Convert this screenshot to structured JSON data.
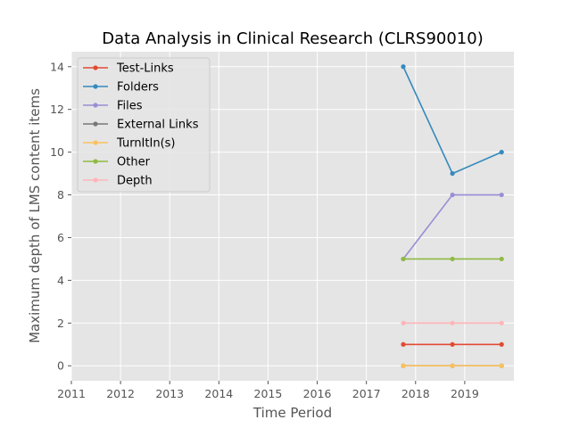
{
  "chart_data": {
    "type": "line",
    "title": "Data Analysis in Clinical Research (CLRS90010)",
    "xlabel": "Time Period",
    "ylabel": "Maximum depth of LMS content items",
    "xlim": [
      2011,
      2020
    ],
    "ylim": [
      -0.7,
      14.7
    ],
    "x_ticks": [
      "2011",
      "2012",
      "2013",
      "2014",
      "2015",
      "2016",
      "2017",
      "2018",
      "2019"
    ],
    "y_ticks": [
      "0",
      "2",
      "4",
      "6",
      "8",
      "10",
      "12",
      "14"
    ],
    "grid": true,
    "legend_position": "top-left",
    "x": [
      "2017-10",
      "2018-10",
      "2019-10"
    ],
    "series": [
      {
        "name": "Test-Links",
        "color": "#E24A33",
        "values": [
          1,
          1,
          1
        ]
      },
      {
        "name": "Folders",
        "color": "#348ABD",
        "values": [
          14,
          9,
          10
        ]
      },
      {
        "name": "Files",
        "color": "#988ED5",
        "values": [
          5,
          8,
          8
        ]
      },
      {
        "name": "External Links",
        "color": "#777777",
        "values": [
          0,
          0,
          0
        ]
      },
      {
        "name": "TurnItIn(s)",
        "color": "#FBC15E",
        "values": [
          0,
          0,
          0
        ]
      },
      {
        "name": "Other",
        "color": "#8EBA42",
        "values": [
          5,
          5,
          5
        ]
      },
      {
        "name": "Depth",
        "color": "#FFB5B8",
        "values": [
          2,
          2,
          2
        ]
      }
    ]
  }
}
